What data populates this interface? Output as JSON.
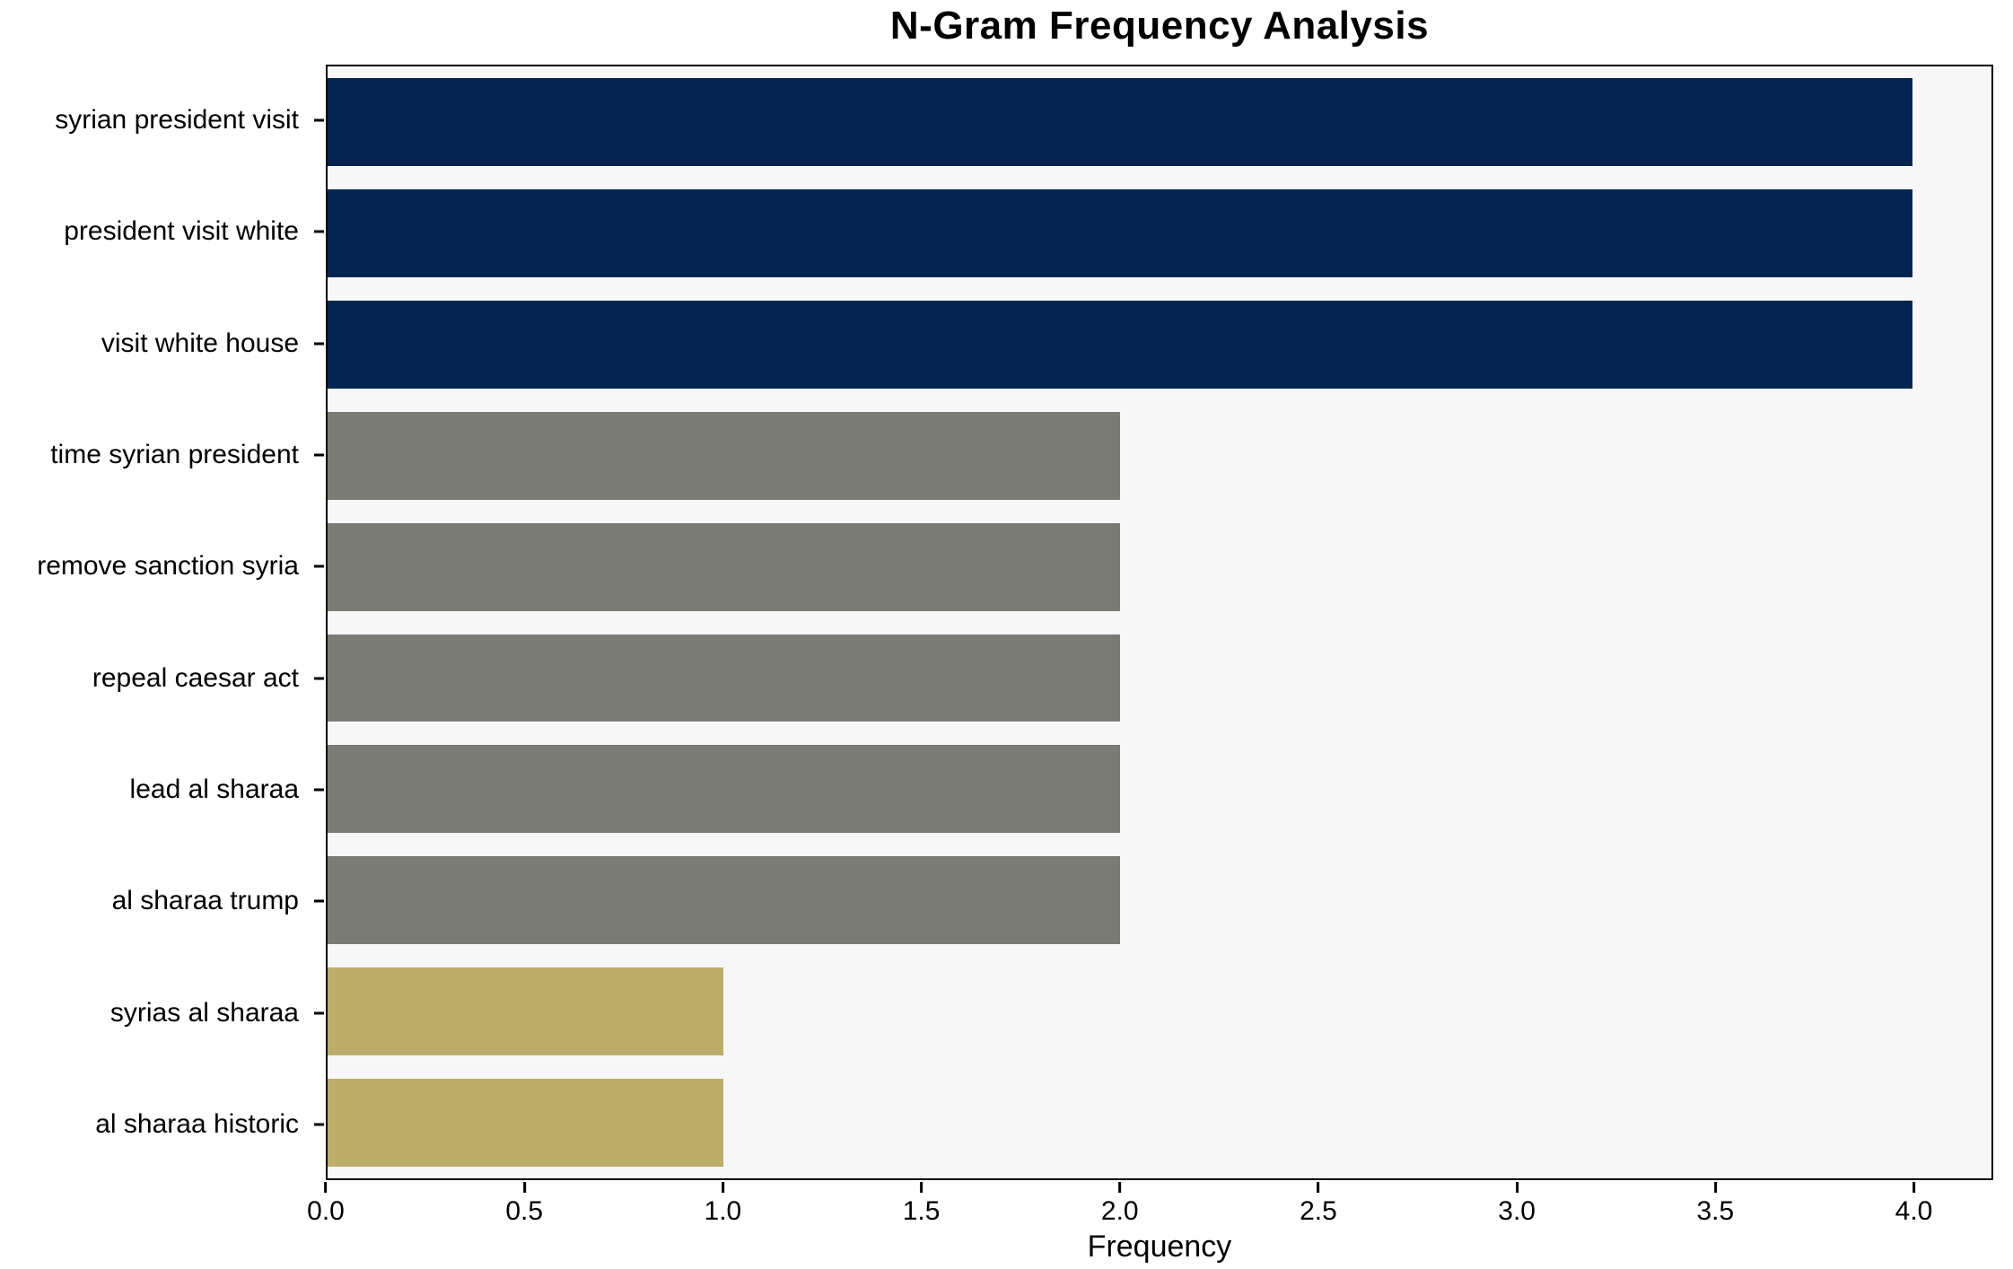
{
  "title": "N-Gram Frequency Analysis",
  "chart_data": {
    "type": "bar",
    "orientation": "horizontal",
    "title": "N-Gram Frequency Analysis",
    "xlabel": "Frequency",
    "ylabel": "",
    "categories": [
      "syrian president visit",
      "president visit white",
      "visit white house",
      "time syrian president",
      "remove sanction syria",
      "repeal caesar act",
      "lead al sharaa",
      "al sharaa trump",
      "syrias al sharaa",
      "al sharaa historic"
    ],
    "values": [
      4,
      4,
      4,
      2,
      2,
      2,
      2,
      2,
      1,
      1
    ],
    "bar_colors": [
      "#04254f",
      "#04254f",
      "#04254f",
      "#7b7b75",
      "#7b7b75",
      "#7b7b75",
      "#7b7b75",
      "#7b7b75",
      "#bdad6d",
      "#bdad6d"
    ],
    "xlim": [
      0,
      4.2
    ],
    "x_tick_values": [
      0,
      0.5,
      1,
      1.5,
      2,
      2.5,
      3,
      3.5,
      4
    ],
    "x_tick_labels": [
      "0.0",
      "0.5",
      "1.0",
      "1.5",
      "2.0",
      "2.5",
      "3.0",
      "3.5",
      "4.0"
    ],
    "grid": false,
    "legend": false,
    "plot_background": "#f7f7f7",
    "figure_background": "#ffffff",
    "frame_color": "#000000",
    "palette": {
      "high_frequency": "#04254f",
      "mid_frequency": "#7b7b75",
      "low_frequency": "#bdad6d"
    }
  }
}
